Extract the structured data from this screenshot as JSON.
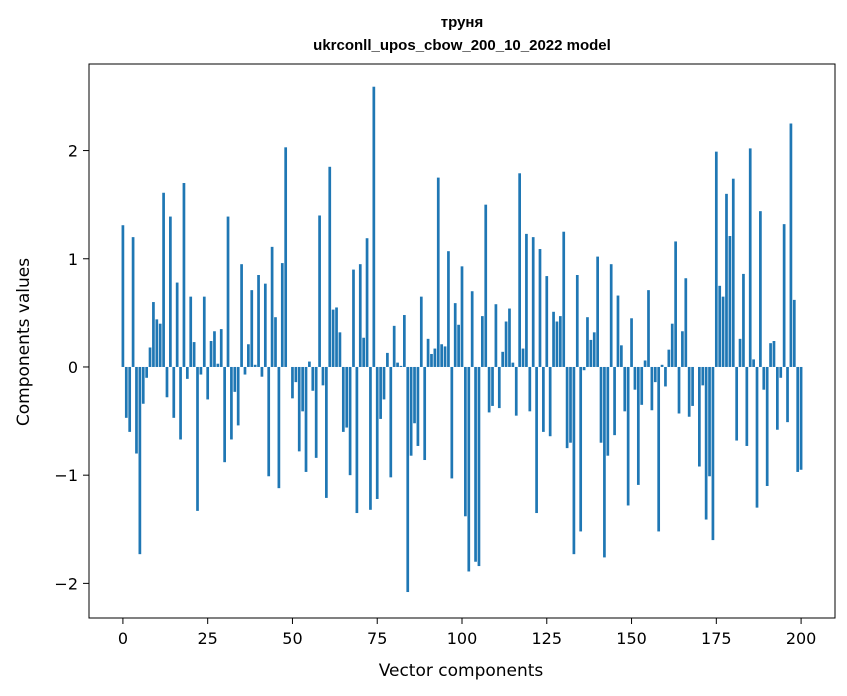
{
  "chart_data": {
    "type": "bar",
    "title": "труня",
    "subtitle": "ukrconll_upos_cbow_200_10_2022 model",
    "xlabel": "Vector components",
    "ylabel": "Components values",
    "xlim": [
      -10,
      210
    ],
    "ylim": [
      -2.32,
      2.8
    ],
    "xticks": [
      0,
      25,
      50,
      75,
      100,
      125,
      150,
      175,
      200
    ],
    "yticks": [
      -2,
      -1,
      0,
      1,
      2
    ],
    "xtick_labels": [
      "0",
      "25",
      "50",
      "75",
      "100",
      "125",
      "150",
      "175",
      "200"
    ],
    "ytick_labels": [
      "−2",
      "−1",
      "0",
      "1",
      "2"
    ],
    "grid": false,
    "bar_color": "#1f77b4",
    "values": [
      1.31,
      -0.47,
      -0.6,
      1.2,
      -0.8,
      -1.73,
      -0.34,
      -0.1,
      0.18,
      0.6,
      0.44,
      0.4,
      1.61,
      -0.28,
      1.39,
      -0.47,
      0.78,
      -0.67,
      1.7,
      -0.11,
      0.65,
      0.23,
      -1.33,
      -0.07,
      0.65,
      -0.3,
      0.24,
      0.33,
      0.03,
      0.35,
      -0.88,
      1.39,
      -0.67,
      -0.23,
      -0.54,
      0.95,
      -0.07,
      0.21,
      0.71,
      0.02,
      0.85,
      -0.09,
      0.77,
      -1.01,
      1.11,
      0.46,
      -1.12,
      0.96,
      2.03,
      0.0,
      -0.29,
      -0.14,
      -0.78,
      -0.41,
      -0.97,
      0.05,
      -0.22,
      -0.84,
      1.4,
      -0.17,
      -1.21,
      1.85,
      0.53,
      0.55,
      0.32,
      -0.6,
      -0.56,
      -1.0,
      0.9,
      -1.35,
      0.95,
      0.27,
      1.19,
      -1.32,
      2.59,
      -1.22,
      -0.48,
      -0.3,
      0.13,
      -1.02,
      0.38,
      0.04,
      0.01,
      0.48,
      -2.08,
      -0.82,
      -0.52,
      -0.73,
      0.65,
      -0.86,
      0.26,
      0.12,
      0.17,
      1.75,
      0.21,
      0.19,
      1.07,
      -1.03,
      0.59,
      0.39,
      0.93,
      -1.38,
      -1.89,
      0.7,
      -1.8,
      -1.84,
      0.47,
      1.5,
      -0.42,
      -0.36,
      0.58,
      -0.38,
      0.14,
      0.42,
      0.54,
      0.04,
      -0.45,
      1.79,
      0.17,
      1.23,
      -0.41,
      1.2,
      -1.35,
      1.09,
      -0.6,
      0.84,
      -0.64,
      0.51,
      0.42,
      0.47,
      1.25,
      -0.75,
      -0.7,
      -1.73,
      0.85,
      -1.52,
      -0.03,
      0.46,
      0.25,
      0.32,
      1.02,
      -0.7,
      -1.76,
      -0.82,
      0.95,
      -0.63,
      0.66,
      0.2,
      -0.41,
      -1.28,
      0.45,
      -0.21,
      -1.09,
      -0.35,
      0.06,
      0.71,
      -0.4,
      -0.14,
      -1.52,
      0.02,
      -0.18,
      0.16,
      0.4,
      1.16,
      -0.43,
      0.33,
      0.82,
      -0.46,
      -0.36,
      0.0,
      -0.92,
      -0.17,
      -1.41,
      -1.01,
      -1.6,
      1.99,
      0.75,
      0.65,
      1.6,
      1.21,
      1.74,
      -0.68,
      0.26,
      0.86,
      -0.73,
      2.02,
      0.07,
      -1.3,
      1.44,
      -0.21,
      -1.1,
      0.22,
      0.24,
      -0.58,
      -0.1,
      1.32,
      -0.51,
      2.25,
      0.62,
      -0.97,
      -0.95
    ]
  }
}
